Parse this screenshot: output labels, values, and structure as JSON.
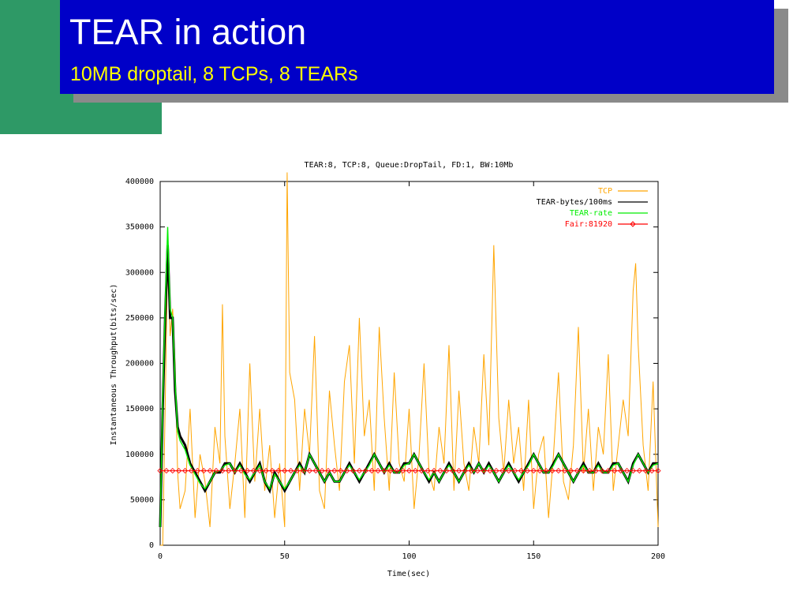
{
  "slide": {
    "title": "TEAR in action",
    "subtitle": "10MB droptail, 8 TCPs, 8 TEARs"
  },
  "colors": {
    "banner": "#0000c8",
    "green_block": "#2e9966",
    "shadow": "#8a8a8a",
    "title_text": "#ffffff",
    "subtitle_text": "#ffff00",
    "tcp": "#ffa500",
    "tear_bytes": "#000000",
    "tear_rate": "#00ee00",
    "fair": "#ff0000"
  },
  "chart_data": {
    "type": "line",
    "title": "TEAR:8, TCP:8, Queue:DropTail, FD:1, BW:10Mb",
    "xlabel": "Time(sec)",
    "ylabel": "Instantaneous Throughput(bits/sec)",
    "xlim": [
      0,
      200
    ],
    "ylim": [
      0,
      400000
    ],
    "xticks": [
      0,
      50,
      100,
      150,
      200
    ],
    "yticks": [
      0,
      50000,
      100000,
      150000,
      200000,
      250000,
      300000,
      350000,
      400000
    ],
    "grid": false,
    "legend_position": "top-right",
    "series": [
      {
        "name": "TCP",
        "color": "#ffa500",
        "x": [
          0,
          1,
          2,
          3,
          4,
          5,
          6,
          7,
          8,
          10,
          12,
          14,
          16,
          18,
          20,
          22,
          24,
          25,
          26,
          28,
          30,
          32,
          34,
          36,
          38,
          40,
          42,
          44,
          46,
          48,
          50,
          51,
          52,
          54,
          56,
          58,
          60,
          62,
          64,
          66,
          68,
          70,
          72,
          74,
          76,
          78,
          80,
          82,
          84,
          86,
          88,
          90,
          92,
          94,
          96,
          98,
          100,
          102,
          104,
          106,
          108,
          110,
          112,
          114,
          116,
          118,
          120,
          122,
          124,
          126,
          128,
          130,
          132,
          134,
          136,
          138,
          140,
          142,
          144,
          146,
          148,
          150,
          152,
          154,
          156,
          158,
          160,
          162,
          164,
          166,
          168,
          170,
          172,
          174,
          176,
          178,
          180,
          182,
          184,
          186,
          188,
          190,
          191,
          192,
          194,
          196,
          198,
          200
        ],
        "y": [
          0,
          0,
          150000,
          320000,
          230000,
          260000,
          200000,
          80000,
          40000,
          60000,
          150000,
          30000,
          100000,
          70000,
          20000,
          130000,
          90000,
          265000,
          120000,
          40000,
          90000,
          150000,
          30000,
          200000,
          70000,
          150000,
          60000,
          110000,
          30000,
          90000,
          20000,
          410000,
          190000,
          160000,
          60000,
          150000,
          100000,
          230000,
          60000,
          40000,
          170000,
          110000,
          60000,
          180000,
          220000,
          90000,
          250000,
          120000,
          160000,
          60000,
          240000,
          140000,
          60000,
          190000,
          90000,
          70000,
          150000,
          40000,
          100000,
          200000,
          80000,
          60000,
          130000,
          90000,
          220000,
          60000,
          170000,
          90000,
          60000,
          130000,
          90000,
          210000,
          110000,
          330000,
          140000,
          80000,
          160000,
          90000,
          130000,
          60000,
          160000,
          40000,
          100000,
          120000,
          30000,
          100000,
          190000,
          70000,
          50000,
          110000,
          240000,
          80000,
          150000,
          60000,
          130000,
          100000,
          210000,
          60000,
          110000,
          160000,
          120000,
          280000,
          310000,
          220000,
          110000,
          60000,
          180000,
          20000
        ]
      },
      {
        "name": "TEAR-bytes/100ms",
        "color": "#000000",
        "x": [
          0,
          1,
          2,
          3,
          4,
          5,
          6,
          7,
          8,
          10,
          12,
          14,
          16,
          18,
          20,
          22,
          24,
          26,
          28,
          30,
          32,
          34,
          36,
          38,
          40,
          42,
          44,
          46,
          48,
          50,
          52,
          54,
          56,
          58,
          60,
          62,
          64,
          66,
          68,
          70,
          72,
          74,
          76,
          78,
          80,
          82,
          84,
          86,
          88,
          90,
          92,
          94,
          96,
          98,
          100,
          102,
          104,
          106,
          108,
          110,
          112,
          114,
          116,
          118,
          120,
          122,
          124,
          126,
          128,
          130,
          132,
          134,
          136,
          138,
          140,
          142,
          144,
          146,
          148,
          150,
          152,
          154,
          156,
          158,
          160,
          162,
          164,
          166,
          168,
          170,
          172,
          174,
          176,
          178,
          180,
          182,
          184,
          186,
          188,
          190,
          192,
          194,
          196,
          198,
          200
        ],
        "y": [
          20000,
          150000,
          250000,
          330000,
          250000,
          250000,
          170000,
          130000,
          120000,
          110000,
          90000,
          80000,
          70000,
          60000,
          70000,
          80000,
          80000,
          90000,
          90000,
          80000,
          90000,
          80000,
          70000,
          80000,
          90000,
          70000,
          60000,
          80000,
          70000,
          60000,
          70000,
          80000,
          90000,
          80000,
          100000,
          90000,
          80000,
          70000,
          80000,
          70000,
          70000,
          80000,
          90000,
          80000,
          70000,
          80000,
          90000,
          100000,
          90000,
          80000,
          90000,
          80000,
          80000,
          90000,
          90000,
          100000,
          90000,
          80000,
          70000,
          80000,
          70000,
          80000,
          90000,
          80000,
          70000,
          80000,
          90000,
          80000,
          90000,
          80000,
          90000,
          80000,
          70000,
          80000,
          90000,
          80000,
          70000,
          80000,
          90000,
          100000,
          90000,
          80000,
          80000,
          90000,
          100000,
          90000,
          80000,
          70000,
          80000,
          90000,
          80000,
          80000,
          90000,
          80000,
          80000,
          90000,
          90000,
          80000,
          70000,
          90000,
          100000,
          90000,
          80000,
          90000,
          90000
        ]
      },
      {
        "name": "TEAR-rate",
        "color": "#00ee00",
        "x": [
          0,
          1,
          2,
          3,
          4,
          5,
          6,
          7,
          8,
          10,
          12,
          14,
          16,
          18,
          20,
          22,
          24,
          26,
          28,
          30,
          32,
          34,
          36,
          38,
          40,
          42,
          44,
          46,
          48,
          50,
          52,
          54,
          56,
          58,
          60,
          62,
          64,
          66,
          68,
          70,
          72,
          74,
          76,
          78,
          80,
          82,
          84,
          86,
          88,
          90,
          92,
          94,
          96,
          98,
          100,
          102,
          104,
          106,
          108,
          110,
          112,
          114,
          116,
          118,
          120,
          122,
          124,
          126,
          128,
          130,
          132,
          134,
          136,
          138,
          140,
          142,
          144,
          146,
          148,
          150,
          152,
          154,
          156,
          158,
          160,
          162,
          164,
          166,
          168,
          170,
          172,
          174,
          176,
          178,
          180,
          182,
          184,
          186,
          188,
          190,
          192,
          194,
          196,
          198,
          200
        ],
        "y": [
          20000,
          160000,
          260000,
          350000,
          260000,
          250000,
          180000,
          125000,
          115000,
          105000,
          88000,
          78000,
          68000,
          62000,
          70000,
          80000,
          82000,
          88000,
          90000,
          80000,
          88000,
          78000,
          72000,
          80000,
          88000,
          70000,
          62000,
          78000,
          70000,
          62000,
          70000,
          80000,
          88000,
          80000,
          100000,
          90000,
          80000,
          70000,
          80000,
          70000,
          70000,
          80000,
          88000,
          80000,
          72000,
          80000,
          88000,
          100000,
          90000,
          80000,
          88000,
          80000,
          80000,
          88000,
          90000,
          100000,
          90000,
          80000,
          72000,
          80000,
          70000,
          80000,
          88000,
          80000,
          70000,
          80000,
          88000,
          80000,
          90000,
          80000,
          88000,
          80000,
          70000,
          80000,
          88000,
          80000,
          72000,
          80000,
          88000,
          100000,
          90000,
          80000,
          80000,
          88000,
          100000,
          90000,
          80000,
          70000,
          80000,
          88000,
          80000,
          80000,
          88000,
          80000,
          80000,
          88000,
          90000,
          80000,
          70000,
          88000,
          100000,
          90000,
          80000,
          88000,
          90000
        ]
      },
      {
        "name": "Fair:81920",
        "color": "#ff0000",
        "x": [
          0,
          200
        ],
        "y": [
          81920,
          81920
        ]
      }
    ]
  }
}
